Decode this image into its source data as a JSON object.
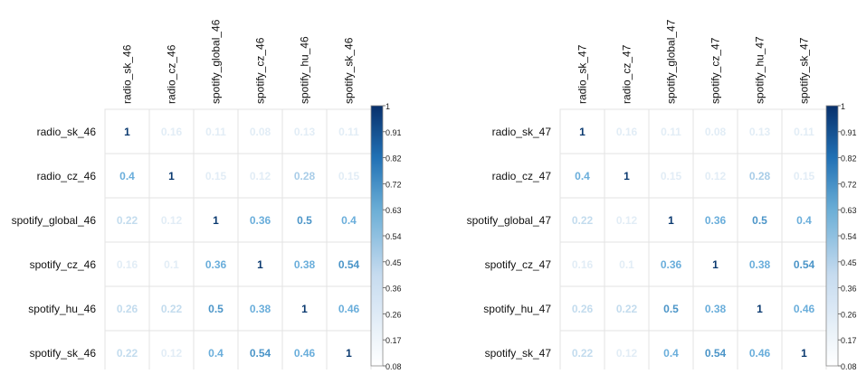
{
  "chart_data": [
    {
      "type": "heatmap",
      "labels": [
        "radio_sk_46",
        "radio_cz_46",
        "spotify_global_46",
        "spotify_cz_46",
        "spotify_hu_46",
        "spotify_sk_46"
      ],
      "values": [
        [
          1,
          0.16,
          0.11,
          0.08,
          0.13,
          0.11
        ],
        [
          0.4,
          1,
          0.15,
          0.12,
          0.28,
          0.15
        ],
        [
          0.22,
          0.12,
          1,
          0.36,
          0.5,
          0.4
        ],
        [
          0.16,
          0.1,
          0.36,
          1,
          0.38,
          0.54
        ],
        [
          0.26,
          0.22,
          0.5,
          0.38,
          1,
          0.46
        ],
        [
          0.22,
          0.12,
          0.4,
          0.54,
          0.46,
          1
        ]
      ],
      "value_labels": [
        [
          "1",
          "0.16",
          "0.11",
          "0.08",
          "0.13",
          "0.11"
        ],
        [
          "0.4",
          "1",
          "0.15",
          "0.12",
          "0.28",
          "0.15"
        ],
        [
          "0.22",
          "0.12",
          "1",
          "0.36",
          "0.5",
          "0.4"
        ],
        [
          "0.16",
          "0.1",
          "0.36",
          "1",
          "0.38",
          "0.54"
        ],
        [
          "0.26",
          "0.22",
          "0.5",
          "0.38",
          "1",
          "0.46"
        ],
        [
          "0.22",
          "0.12",
          "0.4",
          "0.54",
          "0.46",
          "1"
        ]
      ],
      "colorbar": {
        "range": [
          0.08,
          1
        ],
        "ticks": [
          "1",
          "0.91",
          "0.82",
          "0.72",
          "0.63",
          "0.54",
          "0.45",
          "0.36",
          "0.26",
          "0.17",
          "0.08"
        ],
        "color_low": "#ffffff",
        "color_high": "#08306b"
      }
    },
    {
      "type": "heatmap",
      "labels": [
        "radio_sk_47",
        "radio_cz_47",
        "spotify_global_47",
        "spotify_cz_47",
        "spotify_hu_47",
        "spotify_sk_47"
      ],
      "values": [
        [
          1,
          0.16,
          0.11,
          0.08,
          0.13,
          0.11
        ],
        [
          0.4,
          1,
          0.15,
          0.12,
          0.28,
          0.15
        ],
        [
          0.22,
          0.12,
          1,
          0.36,
          0.5,
          0.4
        ],
        [
          0.16,
          0.1,
          0.36,
          1,
          0.38,
          0.54
        ],
        [
          0.26,
          0.22,
          0.5,
          0.38,
          1,
          0.46
        ],
        [
          0.22,
          0.12,
          0.4,
          0.54,
          0.46,
          1
        ]
      ],
      "value_labels": [
        [
          "1",
          "0.16",
          "0.11",
          "0.08",
          "0.13",
          "0.11"
        ],
        [
          "0.4",
          "1",
          "0.15",
          "0.12",
          "0.28",
          "0.15"
        ],
        [
          "0.22",
          "0.12",
          "1",
          "0.36",
          "0.5",
          "0.4"
        ],
        [
          "0.16",
          "0.1",
          "0.36",
          "1",
          "0.38",
          "0.54"
        ],
        [
          "0.26",
          "0.22",
          "0.5",
          "0.38",
          "1",
          "0.46"
        ],
        [
          "0.22",
          "0.12",
          "0.4",
          "0.54",
          "0.46",
          "1"
        ]
      ],
      "colorbar": {
        "range": [
          0.08,
          1
        ],
        "ticks": [
          "1",
          "0.91",
          "0.82",
          "0.72",
          "0.63",
          "0.54",
          "0.45",
          "0.36",
          "0.26",
          "0.17",
          "0.08"
        ],
        "color_low": "#ffffff",
        "color_high": "#08306b"
      }
    }
  ]
}
